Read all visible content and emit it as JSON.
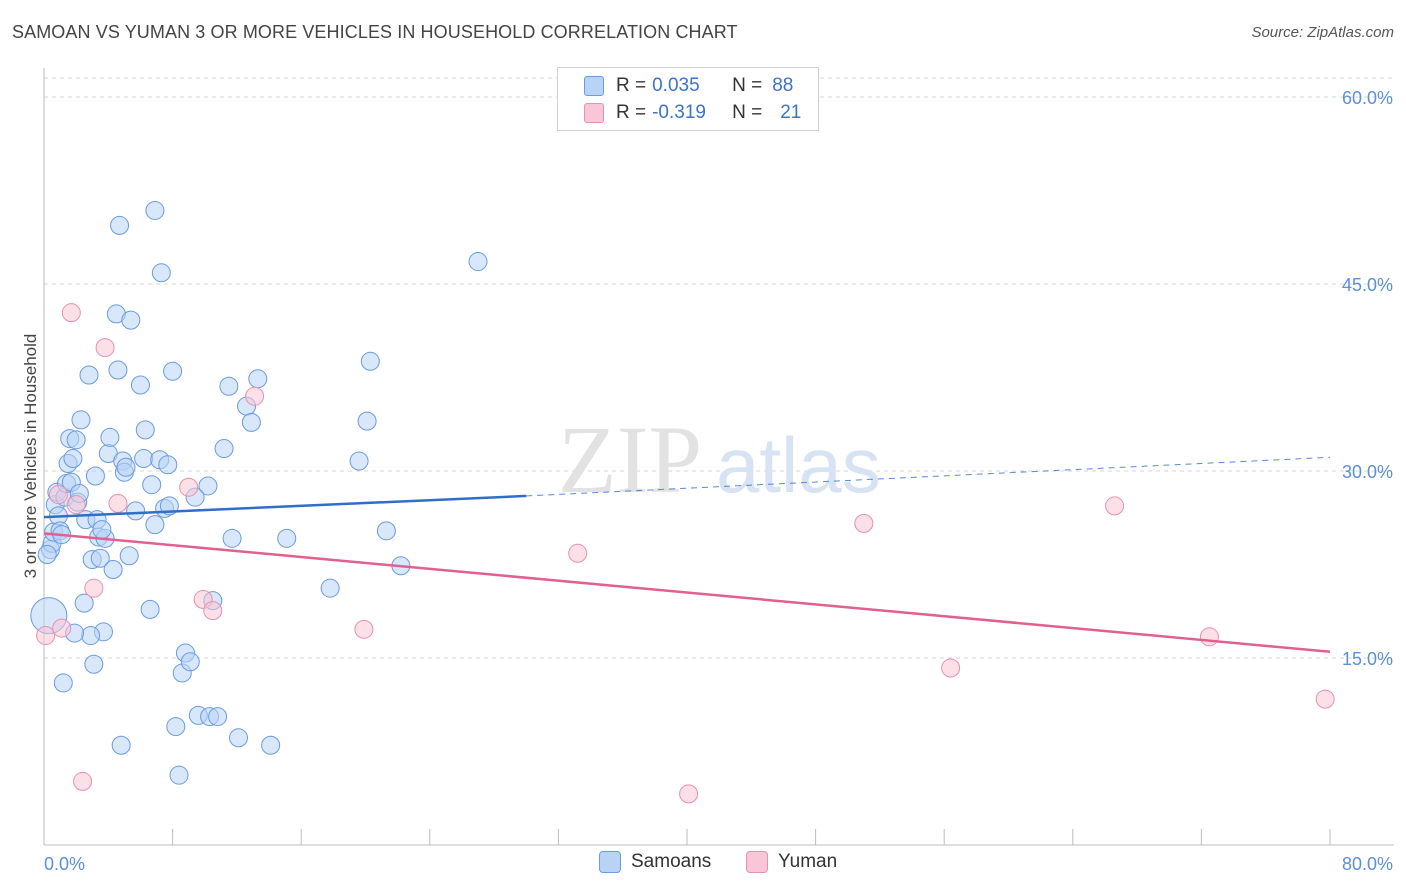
{
  "title": "SAMOAN VS YUMAN 3 OR MORE VEHICLES IN HOUSEHOLD CORRELATION CHART",
  "source": "Source: ZipAtlas.com",
  "watermark": {
    "zip": "ZIP",
    "atlas": "atlas"
  },
  "colors": {
    "samoan_fill": "#b8d3f5",
    "samoan_stroke": "#6a9be0",
    "samoan_line": "#2f6ec9",
    "yuman_fill": "#f8c6d6",
    "yuman_stroke": "#e98fb0",
    "yuman_line": "#e0608f",
    "grid": "#d6d6d6",
    "tick_text": "#5b8fd6"
  },
  "legend": {
    "rows": [
      {
        "r_label": "R =",
        "r_value": "0.035",
        "n_label": "N =",
        "n_value": "88"
      },
      {
        "r_label": "R =",
        "r_value": "-0.319",
        "n_label": "N =",
        "n_value": "21"
      }
    ]
  },
  "bottom_legend": {
    "samoans": "Samoans",
    "yuman": "Yuman"
  },
  "chart_data": {
    "type": "scatter",
    "title": "SAMOAN VS YUMAN 3 OR MORE VEHICLES IN HOUSEHOLD CORRELATION CHART",
    "xlabel": "",
    "ylabel": "3 or more Vehicles in Household",
    "xlim": [
      0,
      80
    ],
    "ylim": [
      0,
      60
    ],
    "x_tick_labels": [
      "0.0%",
      "80.0%"
    ],
    "y_tick_labels": [
      "15.0%",
      "30.0%",
      "45.0%",
      "60.0%"
    ],
    "y_ticks": [
      15,
      30,
      45,
      60
    ],
    "series": [
      {
        "name": "Samoans",
        "r": 0.035,
        "n": 88,
        "trend": {
          "x0": 0,
          "y0": 26.3,
          "x1": 30,
          "y1": 28.0,
          "dashed_to_x": 80,
          "dashed_to_y": 31.1
        },
        "points": [
          [
            0.3,
            18.4
          ],
          [
            0.4,
            23.7
          ],
          [
            0.5,
            24.2
          ],
          [
            0.6,
            25.1
          ],
          [
            0.7,
            27.3
          ],
          [
            0.8,
            28.3
          ],
          [
            0.9,
            26.4
          ],
          [
            1.0,
            25.2
          ],
          [
            1.1,
            24.9
          ],
          [
            1.3,
            27.9
          ],
          [
            1.4,
            29.0
          ],
          [
            1.5,
            30.6
          ],
          [
            1.6,
            32.6
          ],
          [
            1.7,
            29.1
          ],
          [
            1.8,
            31.0
          ],
          [
            2.0,
            32.5
          ],
          [
            2.1,
            27.5
          ],
          [
            2.2,
            28.2
          ],
          [
            2.3,
            34.1
          ],
          [
            2.5,
            19.4
          ],
          [
            2.6,
            26.1
          ],
          [
            2.8,
            37.7
          ],
          [
            3.0,
            22.9
          ],
          [
            3.1,
            14.5
          ],
          [
            3.2,
            29.6
          ],
          [
            3.3,
            26.1
          ],
          [
            3.4,
            24.7
          ],
          [
            3.5,
            23.0
          ],
          [
            3.7,
            17.1
          ],
          [
            3.8,
            24.6
          ],
          [
            4.0,
            31.4
          ],
          [
            4.1,
            32.7
          ],
          [
            4.3,
            22.1
          ],
          [
            4.5,
            42.6
          ],
          [
            4.6,
            38.1
          ],
          [
            4.8,
            8.0
          ],
          [
            4.9,
            30.8
          ],
          [
            5.0,
            29.9
          ],
          [
            5.1,
            30.3
          ],
          [
            5.4,
            42.1
          ],
          [
            5.7,
            26.8
          ],
          [
            6.0,
            36.9
          ],
          [
            6.2,
            31.0
          ],
          [
            6.3,
            33.3
          ],
          [
            6.6,
            18.9
          ],
          [
            6.7,
            28.9
          ],
          [
            6.9,
            25.7
          ],
          [
            7.2,
            30.9
          ],
          [
            7.5,
            27.0
          ],
          [
            7.7,
            30.5
          ],
          [
            7.8,
            27.2
          ],
          [
            8.0,
            38.0
          ],
          [
            8.2,
            9.5
          ],
          [
            8.4,
            5.6
          ],
          [
            8.6,
            13.8
          ],
          [
            8.8,
            15.4
          ],
          [
            9.1,
            14.7
          ],
          [
            9.6,
            10.4
          ],
          [
            10.2,
            28.8
          ],
          [
            10.3,
            10.3
          ],
          [
            10.5,
            19.6
          ],
          [
            10.8,
            10.3
          ],
          [
            11.2,
            31.8
          ],
          [
            11.5,
            36.8
          ],
          [
            11.7,
            24.6
          ],
          [
            12.1,
            8.6
          ],
          [
            12.6,
            35.2
          ],
          [
            13.3,
            37.4
          ],
          [
            14.1,
            8.0
          ],
          [
            15.1,
            24.6
          ],
          [
            17.8,
            20.6
          ],
          [
            19.6,
            30.8
          ],
          [
            20.1,
            34.0
          ],
          [
            20.3,
            38.8
          ],
          [
            21.3,
            25.2
          ],
          [
            22.2,
            22.4
          ],
          [
            27.0,
            46.8
          ],
          [
            1.2,
            13.0
          ],
          [
            2.9,
            16.8
          ],
          [
            4.7,
            49.7
          ],
          [
            6.9,
            50.9
          ],
          [
            7.3,
            45.9
          ],
          [
            0.2,
            23.3
          ],
          [
            1.9,
            17.0
          ],
          [
            3.6,
            25.3
          ],
          [
            5.3,
            23.2
          ],
          [
            9.4,
            27.9
          ],
          [
            12.9,
            33.9
          ]
        ]
      },
      {
        "name": "Yuman",
        "r": -0.319,
        "n": 21,
        "trend": {
          "x0": 0,
          "y0": 25.0,
          "x1": 80,
          "y1": 15.5
        },
        "points": [
          [
            0.1,
            16.8
          ],
          [
            1.1,
            17.4
          ],
          [
            1.7,
            42.7
          ],
          [
            2.0,
            27.3
          ],
          [
            2.4,
            5.1
          ],
          [
            3.1,
            20.6
          ],
          [
            3.8,
            39.9
          ],
          [
            4.6,
            27.4
          ],
          [
            9.0,
            28.7
          ],
          [
            9.9,
            19.7
          ],
          [
            10.5,
            18.8
          ],
          [
            13.1,
            36.0
          ],
          [
            19.9,
            17.3
          ],
          [
            33.2,
            23.4
          ],
          [
            40.1,
            4.1
          ],
          [
            51.0,
            25.8
          ],
          [
            56.4,
            14.2
          ],
          [
            66.6,
            27.2
          ],
          [
            72.5,
            16.7
          ],
          [
            79.7,
            11.7
          ],
          [
            0.9,
            28.1
          ]
        ]
      }
    ]
  }
}
